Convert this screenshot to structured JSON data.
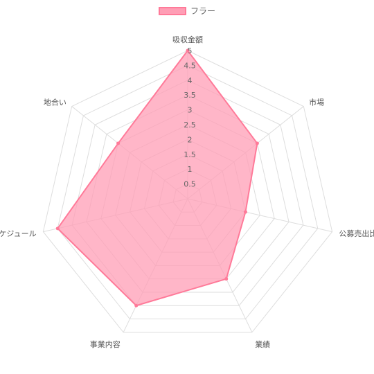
{
  "chart_data": {
    "type": "radar",
    "categories": [
      "吸収金額",
      "市場",
      "公募売出比",
      "業績",
      "事業内容",
      "スケジュール",
      "地合い"
    ],
    "series": [
      {
        "name": "フラー",
        "values": [
          5,
          3,
          2,
          3,
          4,
          4.5,
          3
        ],
        "fill": "#ff9eb5",
        "stroke": "#ff7a99"
      }
    ],
    "r_range": [
      0,
      5
    ],
    "ticks": [
      "0.5",
      "1",
      "1.5",
      "2",
      "2.5",
      "3",
      "3.5",
      "4",
      "4.5",
      "5"
    ],
    "grid": true,
    "legend": "top"
  }
}
